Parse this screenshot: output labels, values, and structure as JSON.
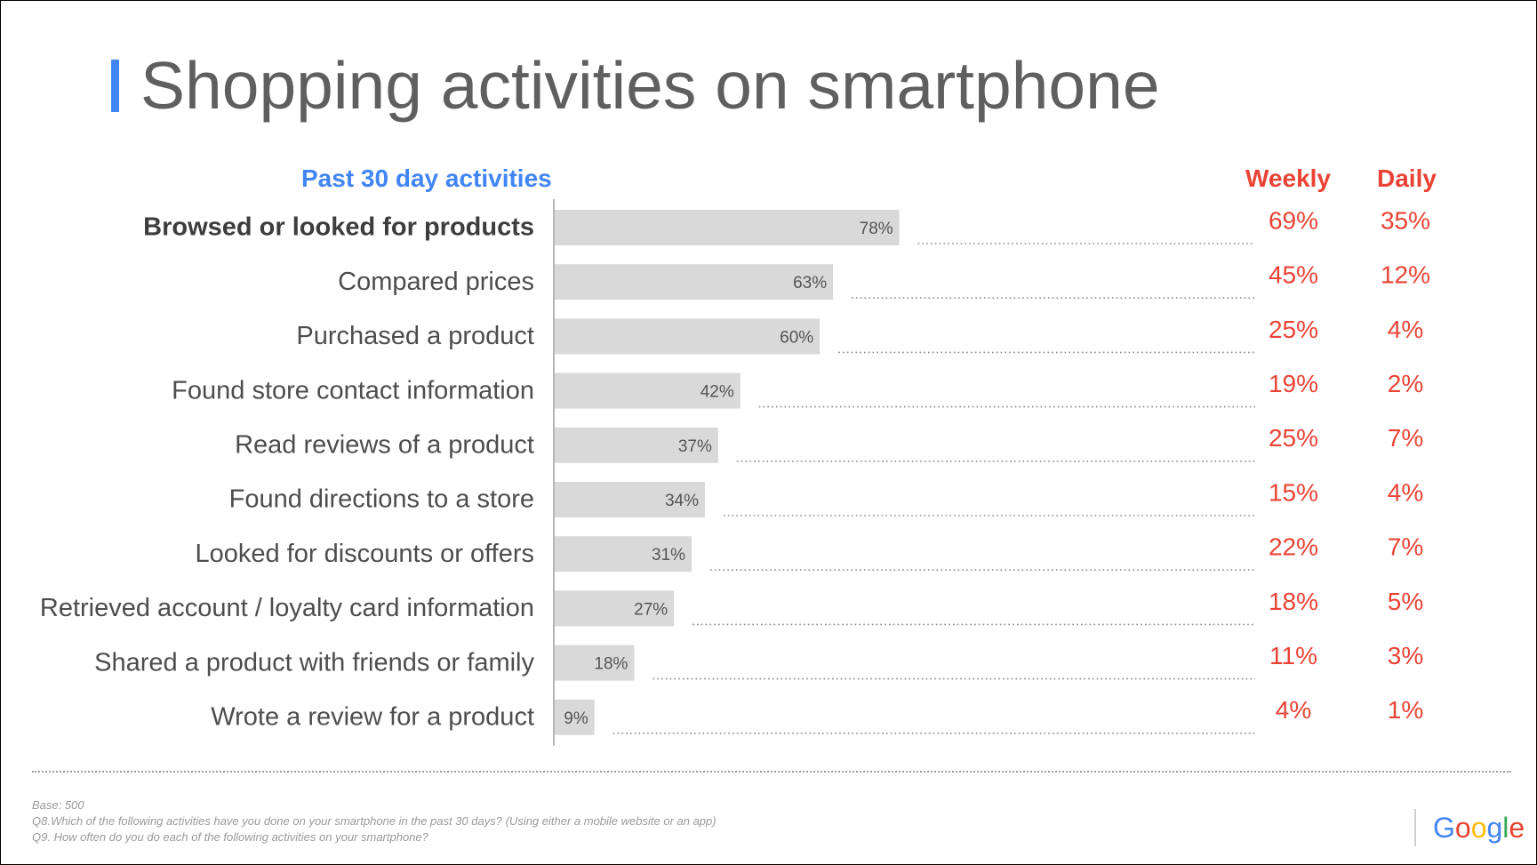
{
  "title": "Shopping activities on smartphone",
  "colors": {
    "accent_blue": "#4285f4",
    "header_red": "#ea4335",
    "bar_fill": "#d9d9d9",
    "title_grey": "#5f5f5f"
  },
  "headers": {
    "past30": "Past 30 day activities",
    "weekly": "Weekly",
    "daily": "Daily"
  },
  "chart_data": {
    "type": "bar",
    "orientation": "horizontal",
    "categories": [
      "Browsed or looked for products",
      "Compared prices",
      "Purchased a product",
      "Found store contact information",
      "Read reviews of a product",
      "Found directions to a store",
      "Looked for discounts or offers",
      "Retrieved account / loyalty card information",
      "Shared a product with friends or family",
      "Wrote a review for a product"
    ],
    "values": [
      78,
      63,
      60,
      42,
      37,
      34,
      31,
      27,
      18,
      9
    ],
    "value_labels": [
      "78%",
      "63%",
      "60%",
      "42%",
      "37%",
      "34%",
      "31%",
      "27%",
      "18%",
      "9%"
    ],
    "weekly": [
      "69%",
      "45%",
      "25%",
      "19%",
      "25%",
      "15%",
      "22%",
      "18%",
      "11%",
      "4%"
    ],
    "daily": [
      "35%",
      "12%",
      "4%",
      "2%",
      "7%",
      "4%",
      "7%",
      "5%",
      "3%",
      "1%"
    ],
    "bold_categories": [
      "Browsed or looked for products"
    ],
    "xlim": [
      0,
      100
    ],
    "grid": false
  },
  "footer": {
    "base": "Base: 500",
    "q8": "Q8.Which of the following activities have you done on your smartphone in the past 30 days? (Using either a mobile website or an app)",
    "q9": "Q9. How often do you do each of the following activities on your smartphone?"
  },
  "logo": {
    "text": "Google",
    "letters": [
      {
        "ch": "G",
        "color": "#4285f4"
      },
      {
        "ch": "o",
        "color": "#ea4335"
      },
      {
        "ch": "o",
        "color": "#fbbc05"
      },
      {
        "ch": "g",
        "color": "#4285f4"
      },
      {
        "ch": "l",
        "color": "#34a853"
      },
      {
        "ch": "e",
        "color": "#ea4335"
      }
    ]
  }
}
